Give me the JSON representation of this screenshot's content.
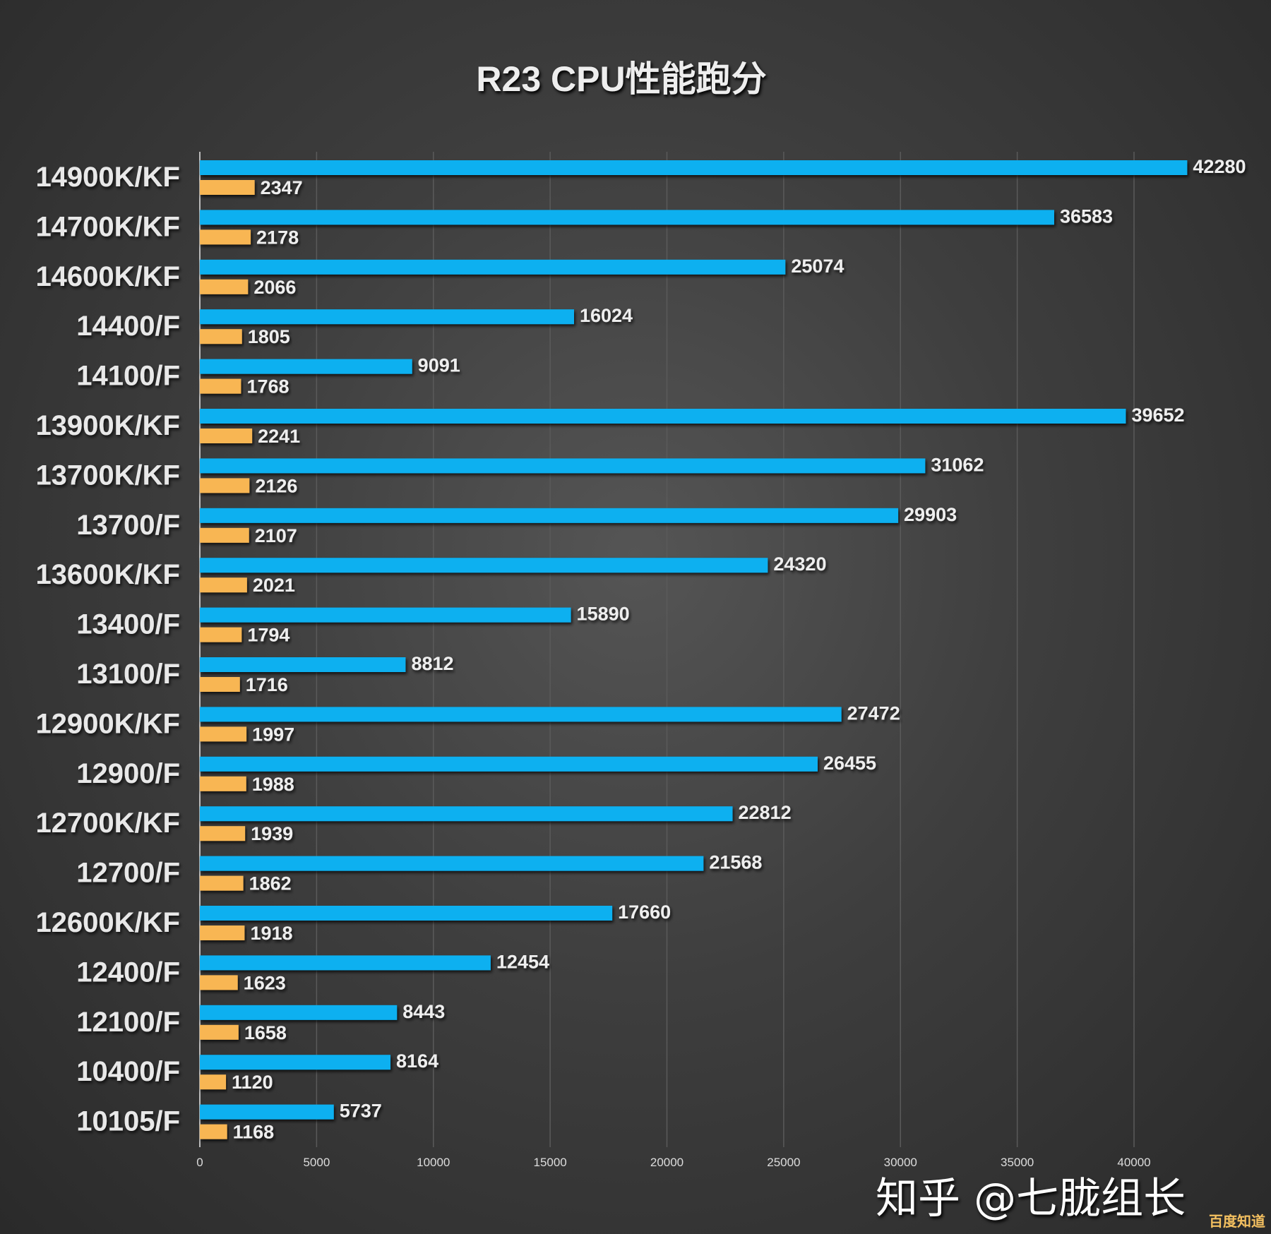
{
  "chart_data": {
    "type": "bar",
    "orientation": "horizontal",
    "title": "R23 CPU性能跑分",
    "categories": [
      "14900K/KF",
      "14700K/KF",
      "14600K/KF",
      "14400/F",
      "14100/F",
      "13900K/KF",
      "13700K/KF",
      "13700/F",
      "13600K/KF",
      "13400/F",
      "13100/F",
      "12900K/KF",
      "12900/F",
      "12700K/KF",
      "12700/F",
      "12600K/KF",
      "12400/F",
      "12100/F",
      "10400/F",
      "10105/F"
    ],
    "series": [
      {
        "values": [
          42280,
          36583,
          25074,
          16024,
          9091,
          39652,
          31062,
          29903,
          24320,
          15890,
          8812,
          27472,
          26455,
          22812,
          21568,
          17660,
          12454,
          8443,
          8164,
          5737
        ],
        "color": "#0bb0f0"
      },
      {
        "values": [
          2347,
          2178,
          2066,
          1805,
          1768,
          2241,
          2126,
          2107,
          2021,
          1794,
          1716,
          1997,
          1988,
          1939,
          1862,
          1918,
          1623,
          1658,
          1120,
          1168
        ],
        "color": "#f8b652"
      }
    ],
    "xlim": [
      0,
      42280
    ],
    "xticks": [
      0,
      5000,
      10000,
      15000,
      20000,
      25000,
      30000,
      35000,
      40000
    ],
    "grid": true,
    "xlabel": "",
    "ylabel": ""
  },
  "watermark": "知乎 @七胧组长",
  "corner_watermark": "百度知道"
}
